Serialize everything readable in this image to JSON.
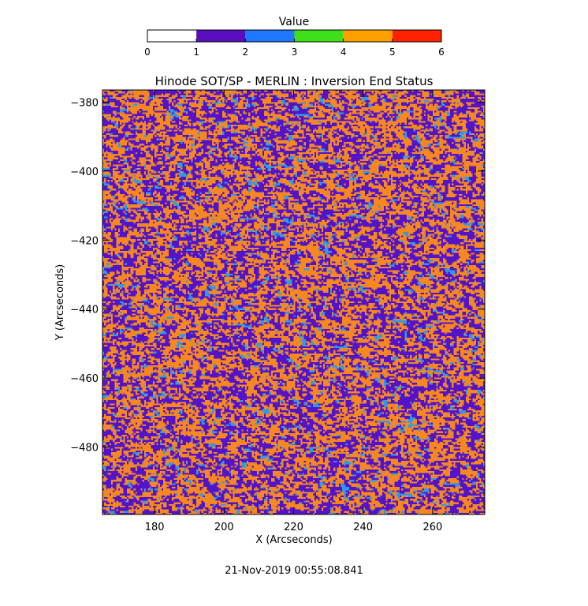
{
  "chart_data": {
    "type": "heatmap",
    "title": "Hinode SOT/SP - MERLIN : Inversion End Status",
    "xlabel": "X (Arcseconds)",
    "ylabel": "Y (Arcseconds)",
    "xlim": [
      165,
      275
    ],
    "ylim": [
      -499.5,
      -376.5
    ],
    "x_ticks": [
      180,
      200,
      220,
      240,
      260
    ],
    "y_ticks": [
      -380,
      -400,
      -420,
      -440,
      -460,
      -480
    ],
    "x_tick_labels": [
      "180",
      "200",
      "220",
      "240",
      "260"
    ],
    "y_tick_labels": [
      "−380",
      "−400",
      "−420",
      "−440",
      "−460",
      "−480"
    ],
    "colorbar": {
      "label": "Value",
      "range": [
        0,
        6
      ],
      "ticks": [
        "0",
        "1",
        "2",
        "3",
        "4",
        "5",
        "6"
      ],
      "bins": [
        {
          "from": 0,
          "to": 1,
          "color": "#ffffff"
        },
        {
          "from": 1,
          "to": 2,
          "color": "#5a0fbf"
        },
        {
          "from": 2,
          "to": 3,
          "color": "#1f78ff"
        },
        {
          "from": 3,
          "to": 4,
          "color": "#3fe01a"
        },
        {
          "from": 4,
          "to": 5,
          "color": "#ffa000"
        },
        {
          "from": 5,
          "to": 6,
          "color": "#ff2200"
        }
      ]
    },
    "map_values": {
      "1": {
        "color": "#5314c9",
        "fraction": 0.44
      },
      "2": {
        "color": "#2f9ae6",
        "fraction": 0.05
      },
      "4": {
        "color": "#f7881f",
        "fraction": 0.51
      }
    }
  },
  "timestamp": "21-Nov-2019 00:55:08.841"
}
